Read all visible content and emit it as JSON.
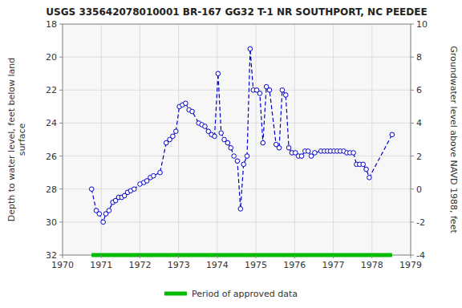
{
  "chart_data": {
    "type": "line",
    "title": "USGS 335642078010001 BR-167 GG32 T-1 NR SOUTHPORT, NC PEEDEE",
    "ylabel": "Depth to water level, feet below land\nsurface",
    "y2label": "Groundwater level above NAVD 1988, feet",
    "xlim": [
      1970,
      1979
    ],
    "xticks": [
      1970,
      1971,
      1972,
      1973,
      1974,
      1975,
      1976,
      1977,
      1978,
      1979
    ],
    "ylim": [
      32,
      18
    ],
    "yticks": [
      18,
      20,
      22,
      24,
      26,
      28,
      30,
      32
    ],
    "y2lim": [
      -4,
      10
    ],
    "y2ticks": [
      -4,
      -2,
      0,
      2,
      4,
      6,
      8,
      10
    ],
    "grid": true,
    "legend": "bottom",
    "x": [
      1970.75,
      1970.87,
      1970.95,
      1971.05,
      1971.12,
      1971.2,
      1971.3,
      1971.37,
      1971.45,
      1971.53,
      1971.6,
      1971.68,
      1971.76,
      1971.85,
      1972.0,
      1972.1,
      1972.18,
      1972.27,
      1972.35,
      1972.52,
      1972.68,
      1972.77,
      1972.85,
      1972.93,
      1973.02,
      1973.1,
      1973.18,
      1973.27,
      1973.35,
      1973.52,
      1973.6,
      1973.68,
      1973.77,
      1973.85,
      1973.93,
      1974.02,
      1974.1,
      1974.18,
      1974.27,
      1974.35,
      1974.43,
      1974.52,
      1974.6,
      1974.68,
      1974.77,
      1974.85,
      1974.93,
      1975.02,
      1975.1,
      1975.18,
      1975.27,
      1975.35,
      1975.52,
      1975.6,
      1975.68,
      1975.77,
      1975.85,
      1975.93,
      1976.02,
      1976.1,
      1976.18,
      1976.27,
      1976.35,
      1976.43,
      1976.52,
      1976.68,
      1976.77,
      1976.85,
      1976.93,
      1977.02,
      1977.1,
      1977.18,
      1977.27,
      1977.35,
      1977.43,
      1977.52,
      1977.6,
      1977.68,
      1977.77,
      1977.85,
      1977.93,
      1978.52
    ],
    "series": [
      {
        "color": "#0000cc",
        "marker": "circle",
        "line_style": "dashed",
        "values": [
          28.0,
          29.3,
          29.5,
          30.0,
          29.5,
          29.3,
          28.8,
          28.7,
          28.5,
          28.5,
          28.4,
          28.2,
          28.1,
          28.0,
          27.7,
          27.6,
          27.5,
          27.3,
          27.2,
          27.0,
          25.2,
          25.0,
          24.8,
          24.5,
          23.0,
          22.9,
          22.8,
          23.2,
          23.3,
          24.0,
          24.1,
          24.2,
          24.5,
          24.7,
          24.8,
          21.0,
          24.6,
          25.0,
          25.2,
          25.5,
          26.0,
          26.3,
          29.2,
          26.5,
          26.0,
          19.5,
          22.0,
          22.0,
          22.2,
          25.2,
          21.8,
          22.0,
          25.3,
          25.5,
          22.0,
          22.3,
          25.5,
          25.8,
          25.8,
          26.0,
          26.0,
          25.7,
          25.7,
          26.0,
          25.8,
          25.7,
          25.7,
          25.7,
          25.7,
          25.7,
          25.7,
          25.7,
          25.7,
          25.8,
          25.8,
          25.8,
          26.5,
          26.5,
          26.5,
          26.8,
          27.3,
          24.7
        ]
      }
    ],
    "periods": [
      {
        "name": "Period of approved data",
        "color": "#00bb00",
        "x": [
          1970.75,
          1978.52
        ]
      }
    ]
  }
}
